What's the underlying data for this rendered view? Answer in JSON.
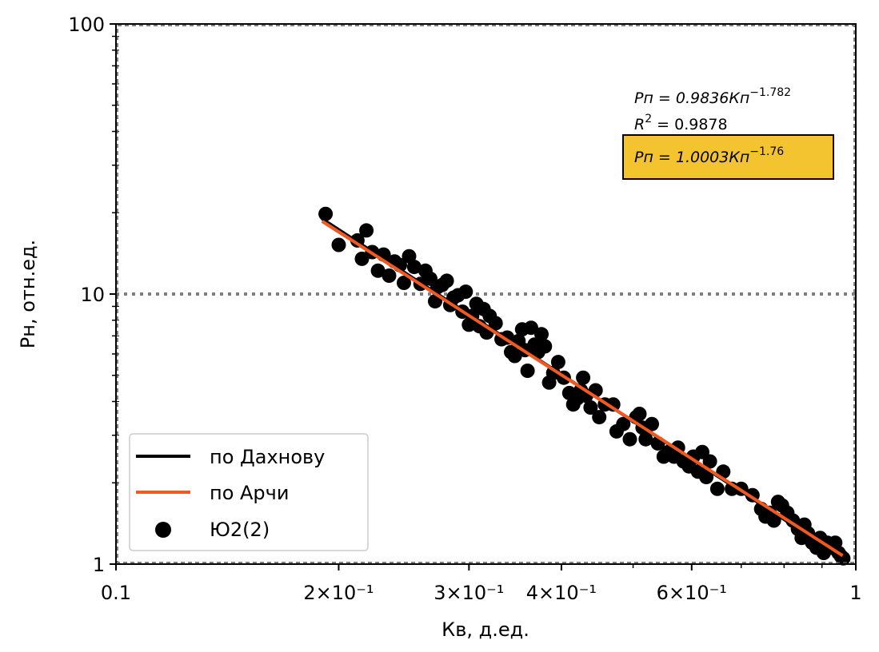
{
  "chart_data": {
    "type": "scatter",
    "title": "",
    "xlabel": "Кв, д.ед.",
    "ylabel": "Рн, отн.ед.",
    "xscale": "log",
    "yscale": "log",
    "xlim": [
      0.1,
      1
    ],
    "ylim": [
      1,
      100
    ],
    "grid": "horizontal dotted at 10; dashed frame",
    "legend_position": "lower-left",
    "x_ticks": [
      {
        "value": 0.1,
        "label": "0.1"
      },
      {
        "value": 0.2,
        "label": "2×10⁻¹"
      },
      {
        "value": 0.3,
        "label": "3×10⁻¹"
      },
      {
        "value": 0.4,
        "label": "4×10⁻¹"
      },
      {
        "value": 0.6,
        "label": "6×10⁻¹"
      },
      {
        "value": 1,
        "label": "1"
      }
    ],
    "y_ticks": [
      {
        "value": 1,
        "label": "1"
      },
      {
        "value": 10,
        "label": "10"
      },
      {
        "value": 100,
        "label": "100"
      }
    ],
    "series": [
      {
        "name": "по Дахнову",
        "kind": "line",
        "color": "#000000",
        "coef": 0.9836,
        "exp": -1.782,
        "x_range": [
          0.19,
          0.96
        ]
      },
      {
        "name": "по Арчи",
        "kind": "line",
        "color": "#f05a22",
        "coef": 1.0003,
        "exp": -1.76,
        "x_range": [
          0.19,
          0.96
        ]
      },
      {
        "name": "Ю2(2)",
        "kind": "scatter",
        "color": "#000000",
        "points": [
          [
            0.192,
            19.8
          ],
          [
            0.2,
            15.2
          ],
          [
            0.212,
            15.8
          ],
          [
            0.215,
            13.5
          ],
          [
            0.218,
            17.2
          ],
          [
            0.222,
            14.3
          ],
          [
            0.226,
            12.2
          ],
          [
            0.23,
            14.0
          ],
          [
            0.234,
            11.7
          ],
          [
            0.238,
            13.2
          ],
          [
            0.242,
            12.8
          ],
          [
            0.245,
            11.0
          ],
          [
            0.249,
            13.8
          ],
          [
            0.253,
            12.6
          ],
          [
            0.258,
            10.9
          ],
          [
            0.262,
            12.2
          ],
          [
            0.266,
            11.4
          ],
          [
            0.27,
            9.4
          ],
          [
            0.272,
            10.6
          ],
          [
            0.276,
            10.8
          ],
          [
            0.28,
            11.2
          ],
          [
            0.283,
            9.1
          ],
          [
            0.286,
            9.7
          ],
          [
            0.29,
            9.9
          ],
          [
            0.294,
            8.6
          ],
          [
            0.297,
            10.2
          ],
          [
            0.3,
            7.7
          ],
          [
            0.303,
            8.3
          ],
          [
            0.307,
            9.2
          ],
          [
            0.31,
            7.6
          ],
          [
            0.314,
            8.8
          ],
          [
            0.317,
            7.2
          ],
          [
            0.32,
            8.3
          ],
          [
            0.326,
            7.8
          ],
          [
            0.332,
            6.8
          ],
          [
            0.338,
            6.9
          ],
          [
            0.342,
            6.1
          ],
          [
            0.346,
            5.9
          ],
          [
            0.35,
            6.7
          ],
          [
            0.354,
            7.4
          ],
          [
            0.357,
            6.2
          ],
          [
            0.36,
            5.2
          ],
          [
            0.364,
            7.5
          ],
          [
            0.368,
            6.5
          ],
          [
            0.372,
            6.1
          ],
          [
            0.376,
            7.1
          ],
          [
            0.38,
            6.4
          ],
          [
            0.385,
            4.7
          ],
          [
            0.39,
            5.1
          ],
          [
            0.396,
            5.6
          ],
          [
            0.403,
            4.9
          ],
          [
            0.41,
            4.3
          ],
          [
            0.415,
            3.9
          ],
          [
            0.42,
            4.1
          ],
          [
            0.425,
            4.4
          ],
          [
            0.428,
            4.9
          ],
          [
            0.432,
            4.2
          ],
          [
            0.438,
            3.8
          ],
          [
            0.445,
            4.4
          ],
          [
            0.45,
            3.5
          ],
          [
            0.458,
            3.9
          ],
          [
            0.47,
            3.9
          ],
          [
            0.475,
            3.1
          ],
          [
            0.485,
            3.3
          ],
          [
            0.495,
            2.9
          ],
          [
            0.505,
            3.5
          ],
          [
            0.51,
            3.6
          ],
          [
            0.515,
            3.2
          ],
          [
            0.52,
            2.9
          ],
          [
            0.53,
            3.3
          ],
          [
            0.54,
            2.8
          ],
          [
            0.55,
            2.5
          ],
          [
            0.558,
            2.6
          ],
          [
            0.568,
            2.5
          ],
          [
            0.575,
            2.7
          ],
          [
            0.585,
            2.4
          ],
          [
            0.595,
            2.3
          ],
          [
            0.603,
            2.5
          ],
          [
            0.612,
            2.2
          ],
          [
            0.62,
            2.6
          ],
          [
            0.628,
            2.1
          ],
          [
            0.635,
            2.4
          ],
          [
            0.65,
            1.9
          ],
          [
            0.662,
            2.2
          ],
          [
            0.68,
            1.9
          ],
          [
            0.7,
            1.9
          ],
          [
            0.725,
            1.8
          ],
          [
            0.745,
            1.6
          ],
          [
            0.755,
            1.5
          ],
          [
            0.765,
            1.55
          ],
          [
            0.775,
            1.45
          ],
          [
            0.785,
            1.7
          ],
          [
            0.795,
            1.65
          ],
          [
            0.808,
            1.55
          ],
          [
            0.822,
            1.45
          ],
          [
            0.835,
            1.35
          ],
          [
            0.845,
            1.25
          ],
          [
            0.852,
            1.4
          ],
          [
            0.862,
            1.3
          ],
          [
            0.873,
            1.2
          ],
          [
            0.885,
            1.15
          ],
          [
            0.895,
            1.25
          ],
          [
            0.905,
            1.1
          ],
          [
            0.915,
            1.2
          ],
          [
            0.928,
            1.15
          ],
          [
            0.938,
            1.2
          ],
          [
            0.948,
            1.1
          ],
          [
            0.955,
            1.07
          ],
          [
            0.962,
            1.05
          ]
        ]
      }
    ],
    "annotations": [
      {
        "id": "dakhnov_eq",
        "base": "Рп = 0.9836Кп",
        "exp": "−1.782"
      },
      {
        "id": "r2",
        "base": "R",
        "sup": "2",
        "rest": " = 0.9878"
      },
      {
        "id": "archie_eq",
        "base": "Рп = 1.0003Кп",
        "exp": "−1.76",
        "box_color": "#f4c430"
      }
    ]
  }
}
